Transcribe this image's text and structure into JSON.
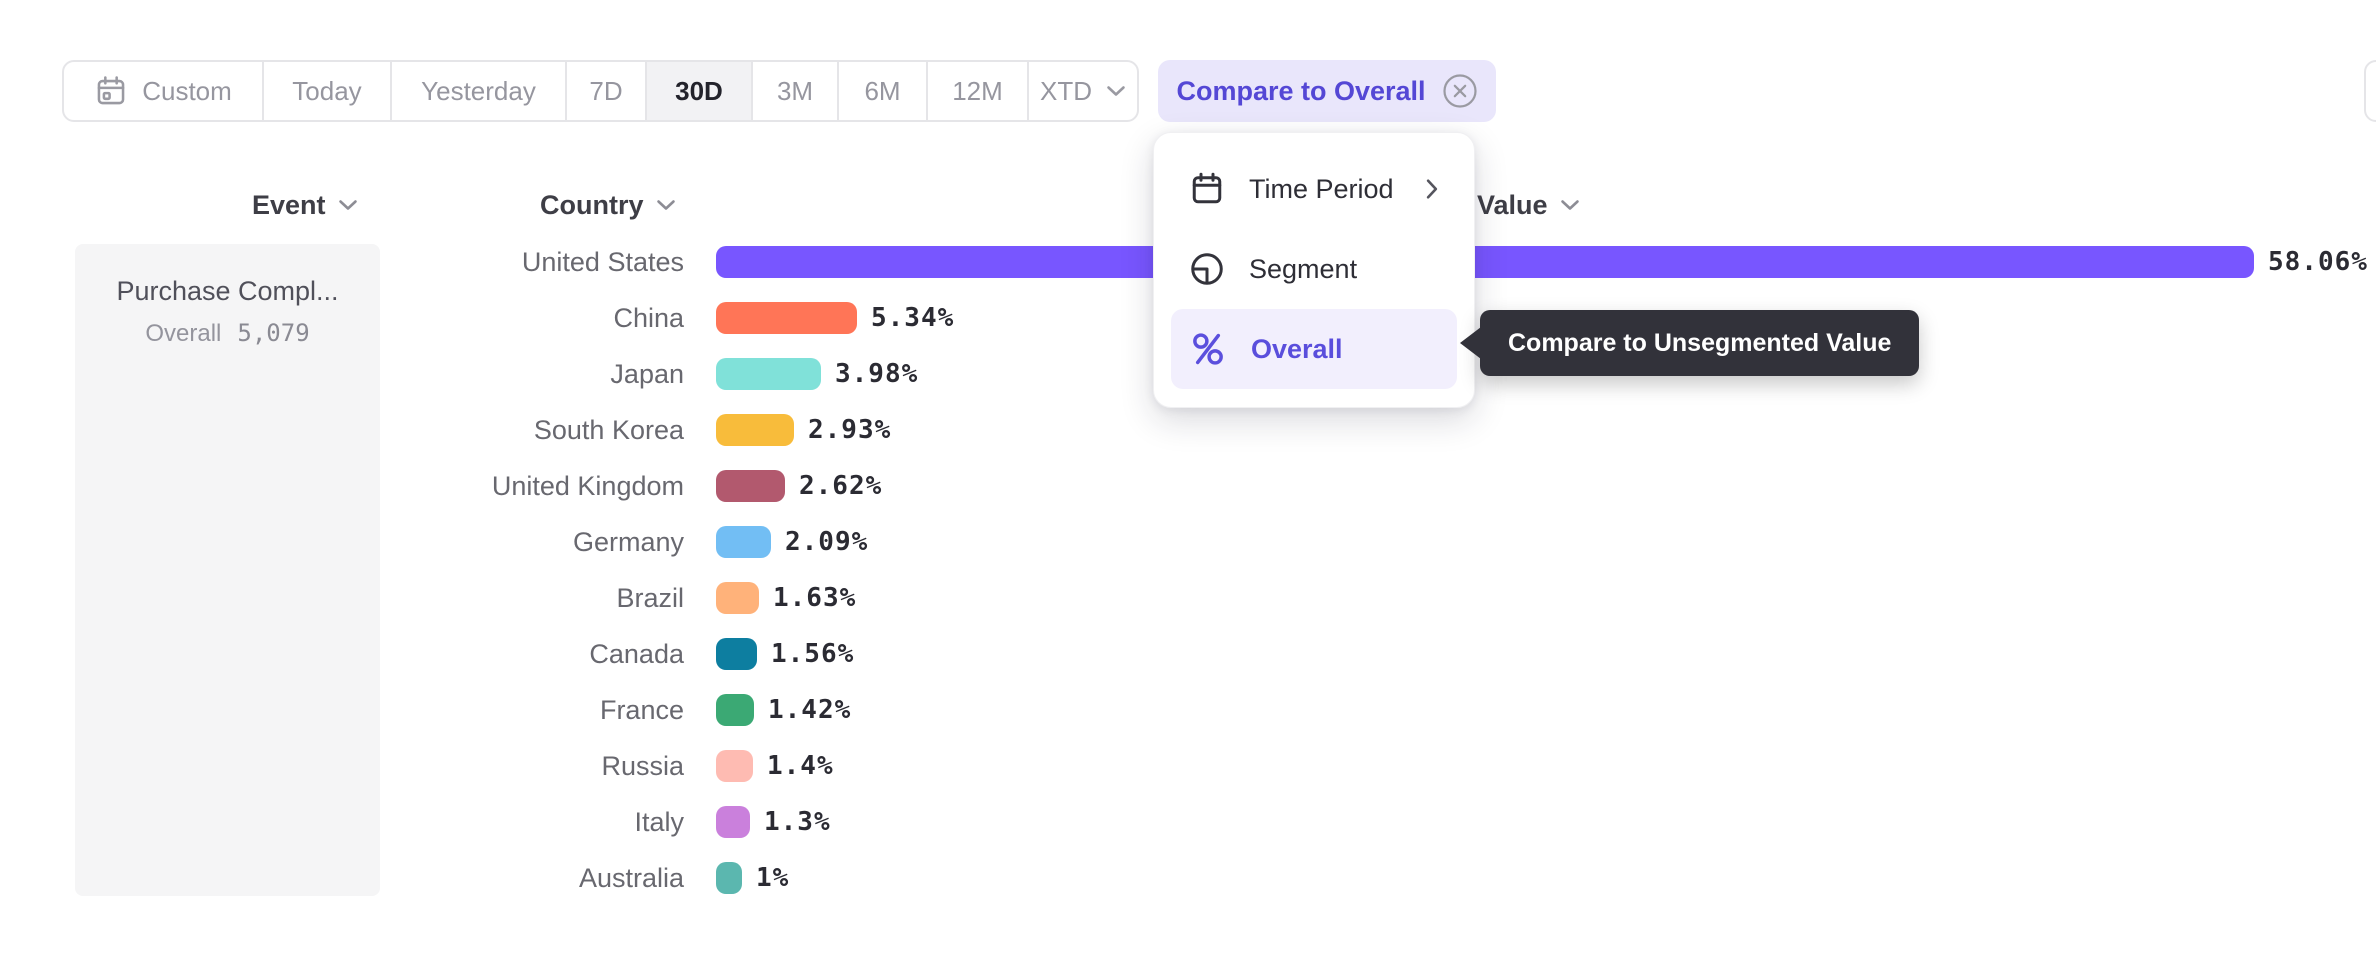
{
  "toolbar": {
    "time_range_buttons": [
      {
        "label": "Custom",
        "icon": "calendar",
        "selected": false
      },
      {
        "label": "Today",
        "selected": false
      },
      {
        "label": "Yesterday",
        "selected": false
      },
      {
        "label": "7D",
        "selected": false
      },
      {
        "label": "30D",
        "selected": true
      },
      {
        "label": "3M",
        "selected": false
      },
      {
        "label": "6M",
        "selected": false
      },
      {
        "label": "12M",
        "selected": false
      },
      {
        "label": "XTD",
        "trailing_icon": "chevron-down",
        "selected": false
      }
    ],
    "compare_button": {
      "label": "Compare to Overall",
      "close_icon": "circle-x"
    }
  },
  "column_headers": {
    "event": "Event",
    "country": "Country",
    "value": "Value"
  },
  "event_panel": {
    "event_name": "Purchase Compl...",
    "overall_label": "Overall",
    "overall_value": "5,079"
  },
  "chart_data": {
    "type": "bar",
    "orientation": "horizontal",
    "title": "",
    "xlabel": "Value",
    "ylabel": "Country",
    "xlim": [
      0,
      58.06
    ],
    "grid": false,
    "legend": false,
    "categories": [
      "United States",
      "China",
      "Japan",
      "South Korea",
      "United Kingdom",
      "Germany",
      "Brazil",
      "Canada",
      "France",
      "Russia",
      "Italy",
      "Australia"
    ],
    "values": [
      58.06,
      5.34,
      3.98,
      2.93,
      2.62,
      2.09,
      1.63,
      1.56,
      1.42,
      1.4,
      1.3,
      1
    ],
    "value_labels": [
      "58.06%",
      "5.34%",
      "3.98%",
      "2.93%",
      "2.62%",
      "2.09%",
      "1.63%",
      "1.56%",
      "1.42%",
      "1.4%",
      "1.3%",
      "1%"
    ],
    "bar_colors": [
      "#7856FF",
      "#FF7557",
      "#80E1D9",
      "#F8BC3B",
      "#B2596E",
      "#72BEF4",
      "#FFB27A",
      "#0D7EA0",
      "#3BA974",
      "#FEBBB2",
      "#CA80DC",
      "#5BB7AF"
    ]
  },
  "dropdown_menu": {
    "items": [
      {
        "label": "Time Period",
        "icon": "calendar-menu",
        "trailing_icon": "chevron-right",
        "active": false
      },
      {
        "label": "Segment",
        "icon": "segment",
        "active": false
      },
      {
        "label": "Overall",
        "icon": "percent",
        "active": true
      }
    ]
  },
  "tooltip": {
    "text": "Compare to Unsegmented Value"
  },
  "colors": {
    "accent_purple": "#7856FF",
    "accent_text_purple": "#5447d5",
    "compare_chip_bg": "#e9e6fb",
    "menu_active_bg": "#f2effd",
    "tooltip_bg": "#32323a",
    "selected_segment_bg": "#f2f2f4",
    "card_bg": "#f5f5f6",
    "toolbar_border": "#e5e5e8"
  }
}
